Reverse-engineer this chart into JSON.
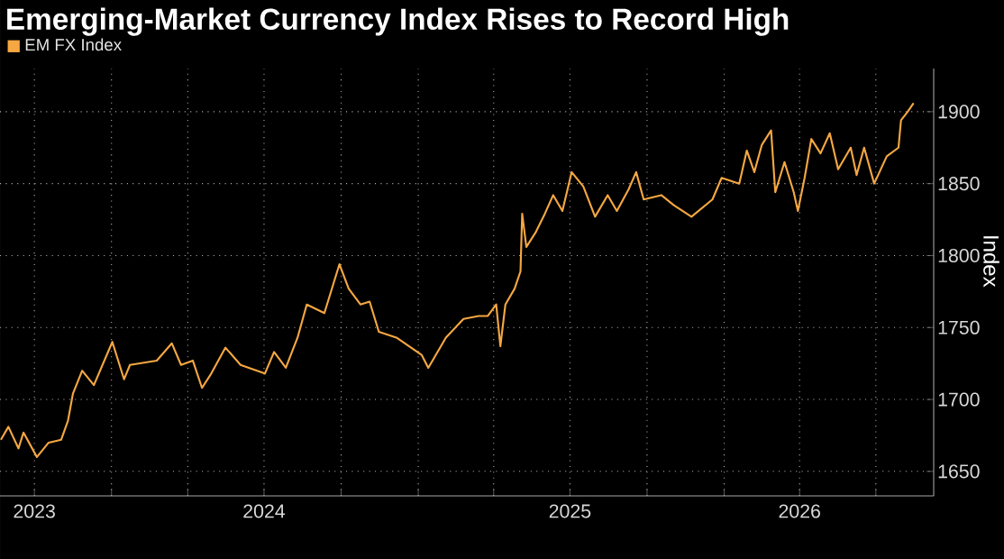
{
  "chart_data": {
    "type": "line",
    "title": "Emerging-Market Currency Index Rises to Record High",
    "ylabel": "Index",
    "legend": "top left",
    "grid": true,
    "xlim": [
      "2023-08-21",
      "2026-09-08"
    ],
    "ylim": [
      1633,
      1930
    ],
    "yticks": [
      1650,
      1700,
      1750,
      1800,
      1850,
      1900
    ],
    "xticks": [
      {
        "value": "2023-10-01",
        "label": "2023"
      },
      {
        "value": "2024-01-01",
        "label": null
      },
      {
        "value": "2024-04-01",
        "label": null
      },
      {
        "value": "2024-07-01",
        "label": "2024"
      },
      {
        "value": "2024-10-01",
        "label": null
      },
      {
        "value": "2025-01-01",
        "label": null
      },
      {
        "value": "2025-04-01",
        "label": null
      },
      {
        "value": "2025-07-01",
        "label": "2025"
      },
      {
        "value": "2025-10-01",
        "label": null
      },
      {
        "value": "2026-01-01",
        "label": null
      },
      {
        "value": "2026-04-01",
        "label": "2026"
      },
      {
        "value": "2026-07-01",
        "label": null
      }
    ],
    "series": [
      {
        "name": "EM FX Index",
        "color": "#f5a742",
        "x": [
          "2023-08-22",
          "2023-08-31",
          "2023-09-12",
          "2023-09-18",
          "2023-10-04",
          "2023-10-18",
          "2023-11-02",
          "2023-11-10",
          "2023-11-16",
          "2023-11-27",
          "2023-12-11",
          "2024-01-02",
          "2024-01-16",
          "2024-01-23",
          "2024-02-24",
          "2024-03-13",
          "2024-03-24",
          "2024-04-07",
          "2024-04-18",
          "2024-04-29",
          "2024-05-16",
          "2024-06-03",
          "2024-07-02",
          "2024-07-13",
          "2024-07-27",
          "2024-08-10",
          "2024-08-21",
          "2024-09-11",
          "2024-09-29",
          "2024-10-10",
          "2024-10-24",
          "2024-11-04",
          "2024-11-15",
          "2024-12-06",
          "2025-01-05",
          "2025-01-13",
          "2025-02-03",
          "2025-02-24",
          "2025-03-14",
          "2025-03-25",
          "2025-04-04",
          "2025-04-09",
          "2025-04-15",
          "2025-04-26",
          "2025-05-03",
          "2025-05-05",
          "2025-05-10",
          "2025-05-21",
          "2025-06-01",
          "2025-06-11",
          "2025-06-22",
          "2025-07-03",
          "2025-07-17",
          "2025-07-31",
          "2025-08-15",
          "2025-08-26",
          "2025-09-09",
          "2025-09-18",
          "2025-09-27",
          "2025-10-18",
          "2025-11-02",
          "2025-11-23",
          "2025-12-18",
          "2025-12-29",
          "2026-01-19",
          "2026-01-28",
          "2026-02-06",
          "2026-02-15",
          "2026-02-26",
          "2026-03-03",
          "2026-03-14",
          "2026-03-25",
          "2026-03-30",
          "2026-04-07",
          "2026-04-15",
          "2026-04-26",
          "2026-05-07",
          "2026-05-17",
          "2026-06-01",
          "2026-06-08",
          "2026-06-17",
          "2026-06-29",
          "2026-07-14",
          "2026-07-28",
          "2026-07-31",
          "2026-08-08",
          "2026-08-15"
        ],
        "values": [
          1672,
          1681,
          1666,
          1677,
          1660,
          1670,
          1672,
          1685,
          1704,
          1720,
          1710,
          1740,
          1714,
          1724,
          1727,
          1739,
          1724,
          1727,
          1708,
          1718,
          1736,
          1724,
          1718,
          1733,
          1722,
          1743,
          1766,
          1760,
          1794,
          1777,
          1766,
          1768,
          1747,
          1743,
          1731,
          1722,
          1743,
          1756,
          1758,
          1758,
          1766,
          1737,
          1766,
          1777,
          1789,
          1829,
          1806,
          1816,
          1829,
          1842,
          1831,
          1858,
          1848,
          1827,
          1842,
          1831,
          1846,
          1858,
          1839,
          1842,
          1835,
          1827,
          1839,
          1854,
          1850,
          1873,
          1858,
          1877,
          1887,
          1844,
          1865,
          1844,
          1831,
          1854,
          1881,
          1871,
          1885,
          1860,
          1875,
          1856,
          1875,
          1850,
          1869,
          1875,
          1894,
          1900,
          1906
        ]
      }
    ]
  }
}
